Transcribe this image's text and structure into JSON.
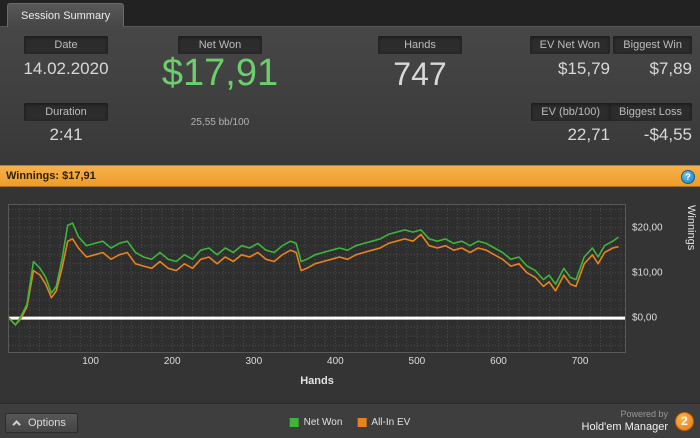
{
  "tab": {
    "label": "Session Summary"
  },
  "stats": {
    "date_label": "Date",
    "date_value": "14.02.2020",
    "duration_label": "Duration",
    "duration_value": "2:41",
    "net_won_label": "Net Won",
    "net_won_value": "$17,91",
    "net_won_sub": "25,55 bb/100",
    "hands_label": "Hands",
    "hands_value": "747",
    "ev_net_won_label": "EV Net Won",
    "ev_net_won_value": "$15,79",
    "ev_bb_label": "EV (bb/100)",
    "ev_bb_value": "22,71",
    "biggest_win_label": "Biggest Win",
    "biggest_win_value": "$7,89",
    "biggest_loss_label": "Biggest Loss",
    "biggest_loss_value": "-$4,55"
  },
  "winnings_bar": {
    "text": "Winnings: $17,91",
    "help_icon": "?"
  },
  "chart_data": {
    "type": "line",
    "title": "Winnings: $17,91",
    "xlabel": "Hands",
    "ylabel": "Winnings",
    "xlim": [
      0,
      755
    ],
    "ylim": [
      -7.5,
      25
    ],
    "x_ticks": [
      100,
      200,
      300,
      400,
      500,
      600,
      700
    ],
    "y_ticks": [
      {
        "value": 20,
        "label": "$20,00"
      },
      {
        "value": 10,
        "label": "$10,00"
      },
      {
        "value": 0,
        "label": "$0,00"
      }
    ],
    "grid": {
      "x_step": 12.5,
      "y_step": 2
    },
    "zero_line": 0,
    "x": [
      0,
      8,
      15,
      22,
      30,
      38,
      45,
      52,
      58,
      65,
      72,
      78,
      85,
      95,
      105,
      115,
      125,
      135,
      145,
      155,
      165,
      175,
      185,
      195,
      205,
      215,
      225,
      235,
      245,
      255,
      265,
      275,
      285,
      295,
      305,
      315,
      325,
      335,
      345,
      352,
      358,
      365,
      375,
      385,
      395,
      405,
      415,
      425,
      435,
      445,
      455,
      465,
      475,
      485,
      495,
      505,
      515,
      525,
      535,
      545,
      555,
      565,
      575,
      585,
      595,
      605,
      615,
      625,
      635,
      645,
      655,
      662,
      670,
      680,
      688,
      695,
      705,
      715,
      722,
      730,
      740,
      747
    ],
    "series": [
      {
        "name": "Net Won",
        "color": "#3db53d",
        "values": [
          0,
          -1.5,
          0.5,
          3,
          12.5,
          11,
          9,
          5.5,
          7,
          13,
          20.5,
          21,
          18,
          16,
          16.5,
          17,
          15.5,
          16.5,
          17,
          14.5,
          13.5,
          13,
          14.5,
          13,
          12.5,
          14,
          13,
          15,
          15.5,
          14,
          15.5,
          14.5,
          16,
          15.5,
          16.5,
          15,
          14.5,
          16,
          17,
          16.5,
          12.5,
          13,
          14,
          14.5,
          15,
          15.5,
          15,
          16,
          16.5,
          17,
          17.5,
          18.5,
          19,
          19.5,
          19,
          19.5,
          17.5,
          17,
          17.5,
          16.5,
          17,
          16,
          17,
          16.5,
          15.5,
          14.5,
          13,
          13.5,
          11.5,
          10.5,
          8.5,
          9.5,
          7.5,
          11,
          9,
          8.5,
          13.5,
          15.5,
          13.5,
          16,
          17,
          17.91
        ]
      },
      {
        "name": "All-In EV",
        "color": "#e8821e",
        "values": [
          0,
          -1.5,
          0,
          2.5,
          10.5,
          9.5,
          7.5,
          4.5,
          6,
          11,
          17,
          17.5,
          15.5,
          13.5,
          14,
          14.5,
          13,
          14,
          14.5,
          12,
          11.5,
          11,
          12.5,
          11,
          10.5,
          12,
          11,
          13,
          13.5,
          12,
          13.5,
          12.5,
          14,
          13.5,
          14.5,
          13,
          12.5,
          14,
          15,
          14.5,
          10.5,
          11,
          12,
          12.5,
          13,
          13.5,
          13,
          14,
          14.5,
          15,
          15.5,
          16.5,
          17,
          17.5,
          17,
          18.5,
          16,
          15.5,
          16,
          15,
          15.5,
          14.5,
          15.5,
          15,
          14,
          13,
          11.5,
          12,
          10,
          9,
          7,
          8,
          6,
          9.5,
          7.5,
          7,
          12,
          14,
          12,
          14.5,
          15.5,
          15.79
        ]
      }
    ]
  },
  "footer": {
    "options_label": "Options",
    "powered_by": "Powered by",
    "brand": "Hold'em Manager",
    "brand_badge": "2"
  },
  "colors": {
    "accent_orange_bar": "#f0a339",
    "net_won_green": "#6bd06b",
    "help_blue": "#2e8fc9"
  }
}
